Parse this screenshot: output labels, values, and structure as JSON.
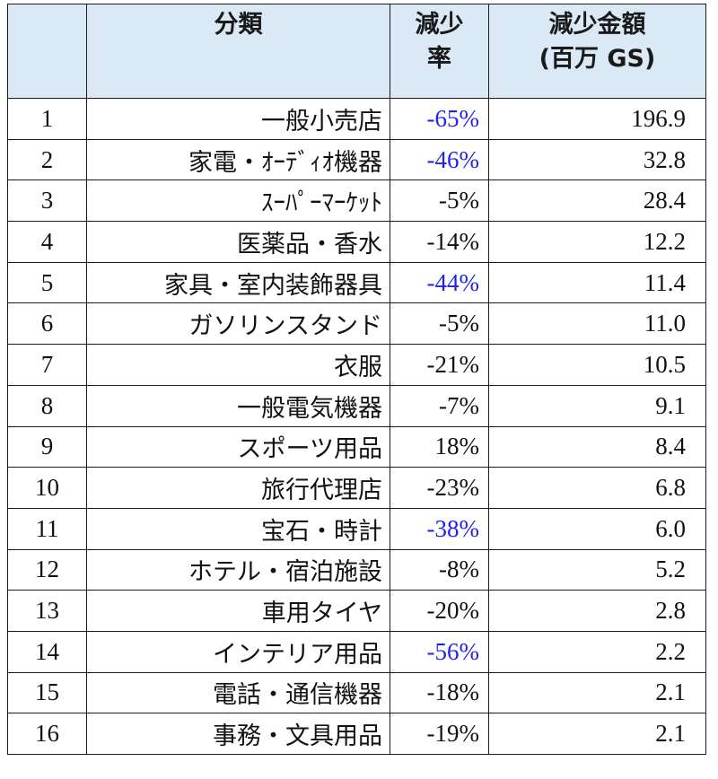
{
  "headers": {
    "rank": "",
    "category": "分類",
    "rate_line1": "減少",
    "rate_line2": "率",
    "amount_line1": "減少金額",
    "amount_line2": "(百万 GS)"
  },
  "colors": {
    "header_bg": "#dbe9f6",
    "highlight_rate": "#2222ee"
  },
  "rows": [
    {
      "rank": "1",
      "category": "一般小売店",
      "rate": "-65%",
      "amount": "196.9",
      "highlight": true
    },
    {
      "rank": "2",
      "category": "家電・ｵｰﾃﾞｨｵ機器",
      "rate": "-46%",
      "amount": "32.8",
      "highlight": true
    },
    {
      "rank": "3",
      "category": "ｽｰﾊﾟｰﾏｰｹｯﾄ",
      "rate": "-5%",
      "amount": "28.4",
      "highlight": false
    },
    {
      "rank": "4",
      "category": "医薬品・香水",
      "rate": "-14%",
      "amount": "12.2",
      "highlight": false
    },
    {
      "rank": "5",
      "category": "家具・室内装飾器具",
      "rate": "-44%",
      "amount": "11.4",
      "highlight": true
    },
    {
      "rank": "6",
      "category": "ガソリンスタンド",
      "rate": "-5%",
      "amount": "11.0",
      "highlight": false
    },
    {
      "rank": "7",
      "category": "衣服",
      "rate": "-21%",
      "amount": "10.5",
      "highlight": false
    },
    {
      "rank": "8",
      "category": "一般電気機器",
      "rate": "-7%",
      "amount": "9.1",
      "highlight": false
    },
    {
      "rank": "9",
      "category": "スポーツ用品",
      "rate": "18%",
      "amount": "8.4",
      "highlight": false
    },
    {
      "rank": "10",
      "category": "旅行代理店",
      "rate": "-23%",
      "amount": "6.8",
      "highlight": false
    },
    {
      "rank": "11",
      "category": "宝石・時計",
      "rate": "-38%",
      "amount": "6.0",
      "highlight": true
    },
    {
      "rank": "12",
      "category": "ホテル・宿泊施設",
      "rate": "-8%",
      "amount": "5.2",
      "highlight": false
    },
    {
      "rank": "13",
      "category": "車用タイヤ",
      "rate": "-20%",
      "amount": "2.8",
      "highlight": false
    },
    {
      "rank": "14",
      "category": "インテリア用品",
      "rate": "-56%",
      "amount": "2.2",
      "highlight": true
    },
    {
      "rank": "15",
      "category": "電話・通信機器",
      "rate": "-18%",
      "amount": "2.1",
      "highlight": false
    },
    {
      "rank": "16",
      "category": "事務・文具用品",
      "rate": "-19%",
      "amount": "2.1",
      "highlight": false
    }
  ]
}
